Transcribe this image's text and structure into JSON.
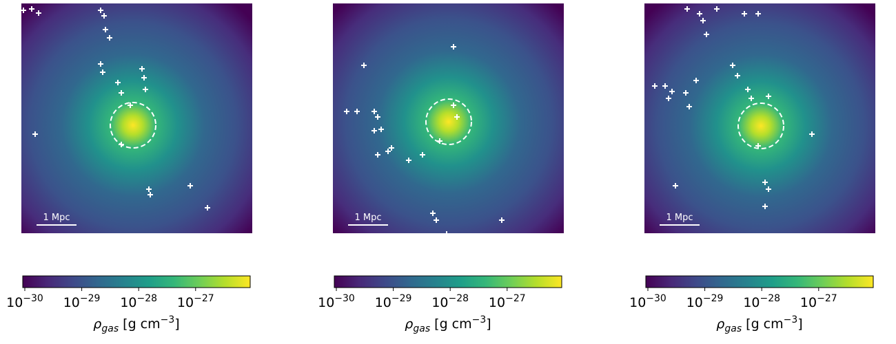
{
  "panels": [
    {
      "scale_bar": "1 Mpc"
    },
    {
      "scale_bar": "1 Mpc"
    },
    {
      "scale_bar": "1 Mpc"
    }
  ],
  "colorbar": {
    "scale": "log",
    "lim": [
      9.2e-31,
      9.1e-27
    ],
    "ticks": [
      {
        "value": 1e-30,
        "label": "10",
        "exponent": "−30"
      },
      {
        "value": 1e-29,
        "label": "10",
        "exponent": "−29"
      },
      {
        "value": 1e-28,
        "label": "10",
        "exponent": "−28"
      },
      {
        "value": 1e-27,
        "label": "10",
        "exponent": "−27"
      }
    ],
    "colors": [
      "#440154",
      "#482878",
      "#3e4989",
      "#31688e",
      "#26828e",
      "#1f9e89",
      "#35b779",
      "#6ece58",
      "#b5de2b",
      "#fde725"
    ],
    "label": {
      "symbol": "ρ",
      "subscript": "gas",
      "unit": " [g cm",
      "unit_exponent": "−3",
      "close": "]"
    }
  }
}
